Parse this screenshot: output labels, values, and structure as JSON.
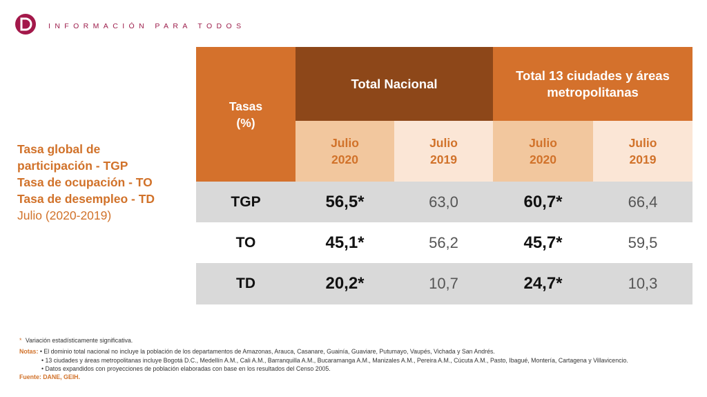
{
  "brand": {
    "tagline": "INFORMACIÓN PARA TODOS",
    "logo_color": "#a3184a"
  },
  "side": {
    "line1": "Tasa global de",
    "line2": "participación - TGP",
    "line3": "Tasa de ocupación - TO",
    "line4": "Tasa de desempleo - TD",
    "line5": "Julio (2020-2019)"
  },
  "table": {
    "header_rates_l1": "Tasas",
    "header_rates_l2": "(%)",
    "header_nacional": "Total Nacional",
    "header_13": "Total 13 ciudades y áreas metropolitanas",
    "sub_headers": [
      "Julio 2020",
      "Julio 2019",
      "Julio 2020",
      "Julio 2019"
    ],
    "rows": [
      {
        "label": "TGP",
        "values": [
          "56,5*",
          "63,0",
          "60,7*",
          "66,4"
        ]
      },
      {
        "label": "TO",
        "values": [
          "45,1*",
          "56,2",
          "45,7*",
          "59,5"
        ]
      },
      {
        "label": "TD",
        "values": [
          "20,2*",
          "10,7",
          "24,7*",
          "10,3"
        ]
      }
    ]
  },
  "footnotes": {
    "asterisk": "*",
    "significant": "Variación estadísticamente significativa.",
    "notes_label": "Notas:",
    "note1": "• El dominio total nacional no incluye la población de los departamentos de Amazonas, Arauca, Casanare, Guainía, Guaviare, Putumayo, Vaupés, Vichada y San Andrés.",
    "note2": "• 13 ciudades y áreas metropolitanas incluye Bogotá D.C., Medellín A.M., Cali A.M., Barranquilla A.M., Bucaramanga A.M., Manizales A.M., Pereira A.M., Cúcuta A.M., Pasto, Ibagué, Montería, Cartagena y Villavicencio.",
    "note3": "• Datos expandidos con proyecciones de población elaboradas con base en los resultados del Censo 2005.",
    "source": "Fuente: DANE, GEIH."
  },
  "colors": {
    "orange": "#d4712c",
    "brown": "#8d4719",
    "peach": "#f2c79e",
    "light_peach": "#fbe6d6",
    "grey": "#d9d9d9"
  }
}
